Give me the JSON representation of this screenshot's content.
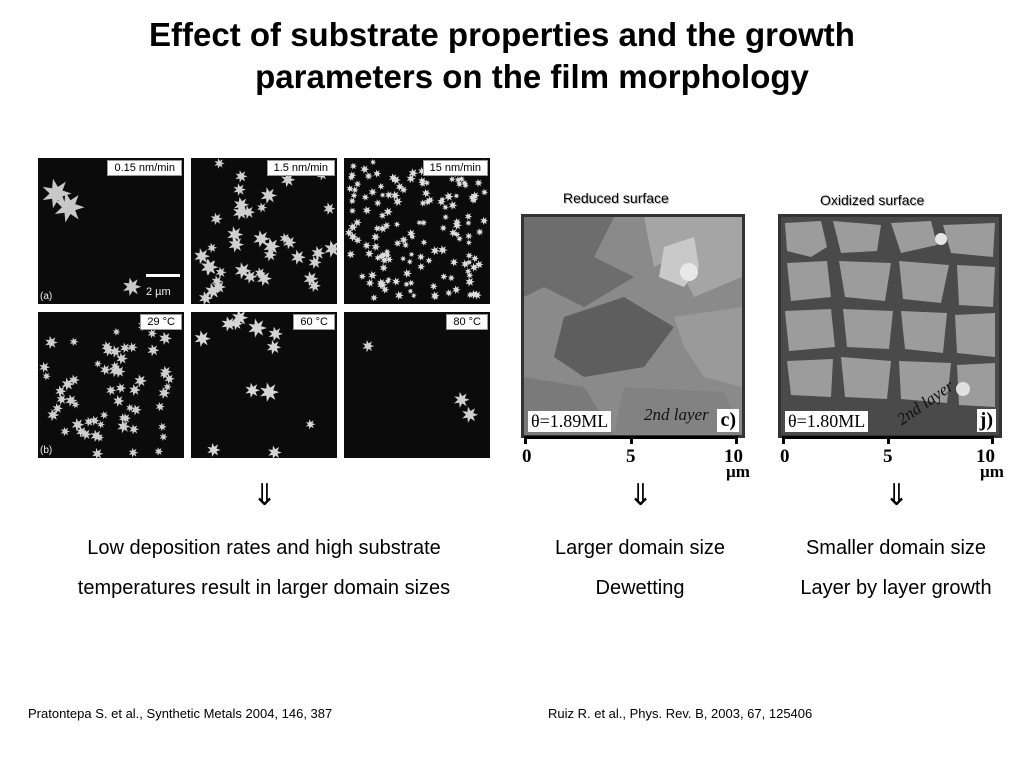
{
  "title": {
    "line1": "Effect of substrate properties and the growth",
    "line2": "parameters on the film morphology"
  },
  "afm_panels": {
    "rate_labels": [
      "0.15 nm/min",
      "1.5 nm/min",
      "15 nm/min"
    ],
    "temperature_labels": [
      "29 °C",
      "60 °C",
      "80 °C"
    ],
    "panel_a": "(a)",
    "panel_b": "(b)",
    "scale_bar_label": "2 µm"
  },
  "stm": {
    "reduced": {
      "label": "Reduced surface",
      "theta": "θ=1.89ML",
      "layer": "2nd layer",
      "panel": "c)"
    },
    "oxidized": {
      "label": "Oxidized surface",
      "theta": "θ=1.80ML",
      "layer": "2nd layer",
      "panel": "j)"
    },
    "axis_ticks": [
      "0",
      "5",
      "10"
    ],
    "axis_unit": "µm"
  },
  "arrows": {
    "glyph": "⇓"
  },
  "captions": {
    "left_line1": "Low deposition rates and high substrate",
    "left_line2": "temperatures result in larger domain sizes",
    "middle_line1": "Larger domain size",
    "middle_line2": "Dewetting",
    "right_line1": "Smaller domain size",
    "right_line2": "Layer by layer growth"
  },
  "references": {
    "left": "Pratontepa S. et al., Synthetic Metals 2004, 146, 387",
    "right": "Ruiz R. et al., Phys. Rev. B, 2003, 67, 125406"
  }
}
